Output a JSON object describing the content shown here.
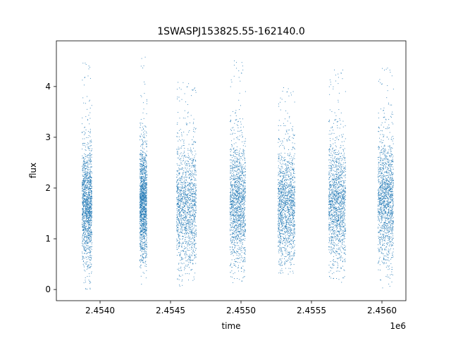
{
  "chart_data": {
    "type": "scatter",
    "title": "1SWASPJ153825.55-162140.0",
    "xlabel": "time",
    "ylabel": "flux",
    "x_offset_label": "1e6",
    "xlim": [
      2.45369,
      2.45617
    ],
    "ylim": [
      -0.22,
      4.9
    ],
    "x_ticks": [
      2.454,
      2.4545,
      2.455,
      2.4555,
      2.456
    ],
    "x_tick_labels": [
      "2.4540",
      "2.4545",
      "2.4550",
      "2.4555",
      "2.4560"
    ],
    "y_ticks": [
      0,
      1,
      2,
      3,
      4
    ],
    "y_tick_labels": [
      "0",
      "1",
      "2",
      "3",
      "4"
    ],
    "grid": false,
    "marker_color": "#1f77b4",
    "series": [
      {
        "clusters": [
          {
            "x_range": [
              2.45387,
              2.45394
            ],
            "y_center": 1.6,
            "y_spread": 0.55,
            "y_min": 0.0,
            "y_max": 4.55
          },
          {
            "x_range": [
              2.45428,
              2.45433
            ],
            "y_center": 1.65,
            "y_spread": 0.55,
            "y_min": 0.08,
            "y_max": 4.7
          },
          {
            "x_range": [
              2.45454,
              2.45468
            ],
            "y_center": 1.6,
            "y_spread": 0.6,
            "y_min": 0.05,
            "y_max": 4.1
          },
          {
            "x_range": [
              2.45492,
              2.45503
            ],
            "y_center": 1.65,
            "y_spread": 0.6,
            "y_min": 0.1,
            "y_max": 4.6
          },
          {
            "x_range": [
              2.45526,
              2.45538
            ],
            "y_center": 1.6,
            "y_spread": 0.55,
            "y_min": 0.3,
            "y_max": 4.0
          },
          {
            "x_range": [
              2.45562,
              2.45574
            ],
            "y_center": 1.65,
            "y_spread": 0.6,
            "y_min": 0.08,
            "y_max": 4.35
          },
          {
            "x_range": [
              2.45597,
              2.45608
            ],
            "y_center": 1.7,
            "y_spread": 0.6,
            "y_min": 0.0,
            "y_max": 4.45
          }
        ]
      }
    ]
  }
}
